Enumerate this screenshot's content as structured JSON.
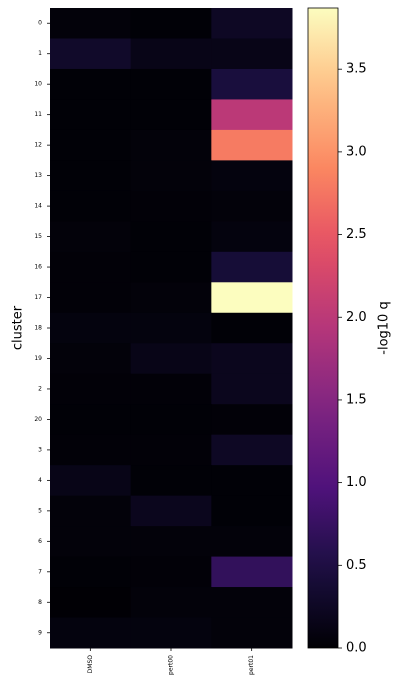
{
  "chart_data": {
    "type": "heatmap",
    "y_label": "cluster",
    "colorbar_label": "-log10 q",
    "colormap": "magma",
    "x": [
      "DMSO",
      "pert00",
      "pert01"
    ],
    "y": [
      "0",
      "1",
      "10",
      "11",
      "12",
      "13",
      "14",
      "15",
      "16",
      "17",
      "18",
      "19",
      "2",
      "20",
      "3",
      "4",
      "5",
      "6",
      "7",
      "8",
      "9"
    ],
    "values": [
      [
        0.05,
        0.02,
        0.25
      ],
      [
        0.3,
        0.15,
        0.15
      ],
      [
        0.02,
        0.02,
        0.45
      ],
      [
        0.02,
        0.02,
        2.0
      ],
      [
        0.02,
        0.05,
        2.8
      ],
      [
        0.02,
        0.05,
        0.08
      ],
      [
        0.02,
        0.03,
        0.05
      ],
      [
        0.05,
        0.02,
        0.08
      ],
      [
        0.03,
        0.02,
        0.4
      ],
      [
        0.03,
        0.05,
        3.87
      ],
      [
        0.08,
        0.08,
        0.02
      ],
      [
        0.05,
        0.15,
        0.2
      ],
      [
        0.03,
        0.03,
        0.2
      ],
      [
        0.02,
        0.02,
        0.03
      ],
      [
        0.03,
        0.03,
        0.25
      ],
      [
        0.15,
        0.02,
        0.02
      ],
      [
        0.05,
        0.2,
        0.02
      ],
      [
        0.05,
        0.05,
        0.05
      ],
      [
        0.02,
        0.03,
        0.7
      ],
      [
        0.01,
        0.05,
        0.05
      ],
      [
        0.08,
        0.08,
        0.05
      ]
    ],
    "clim": [
      0,
      3.87
    ],
    "cticks": [
      {
        "value": 0,
        "label": "0.0"
      },
      0.5,
      {
        "value": 1,
        "label": "1.0"
      },
      1.5,
      {
        "value": 2,
        "label": "2.0"
      },
      2.5,
      {
        "value": 3,
        "label": "3.0"
      },
      3.5
    ]
  }
}
